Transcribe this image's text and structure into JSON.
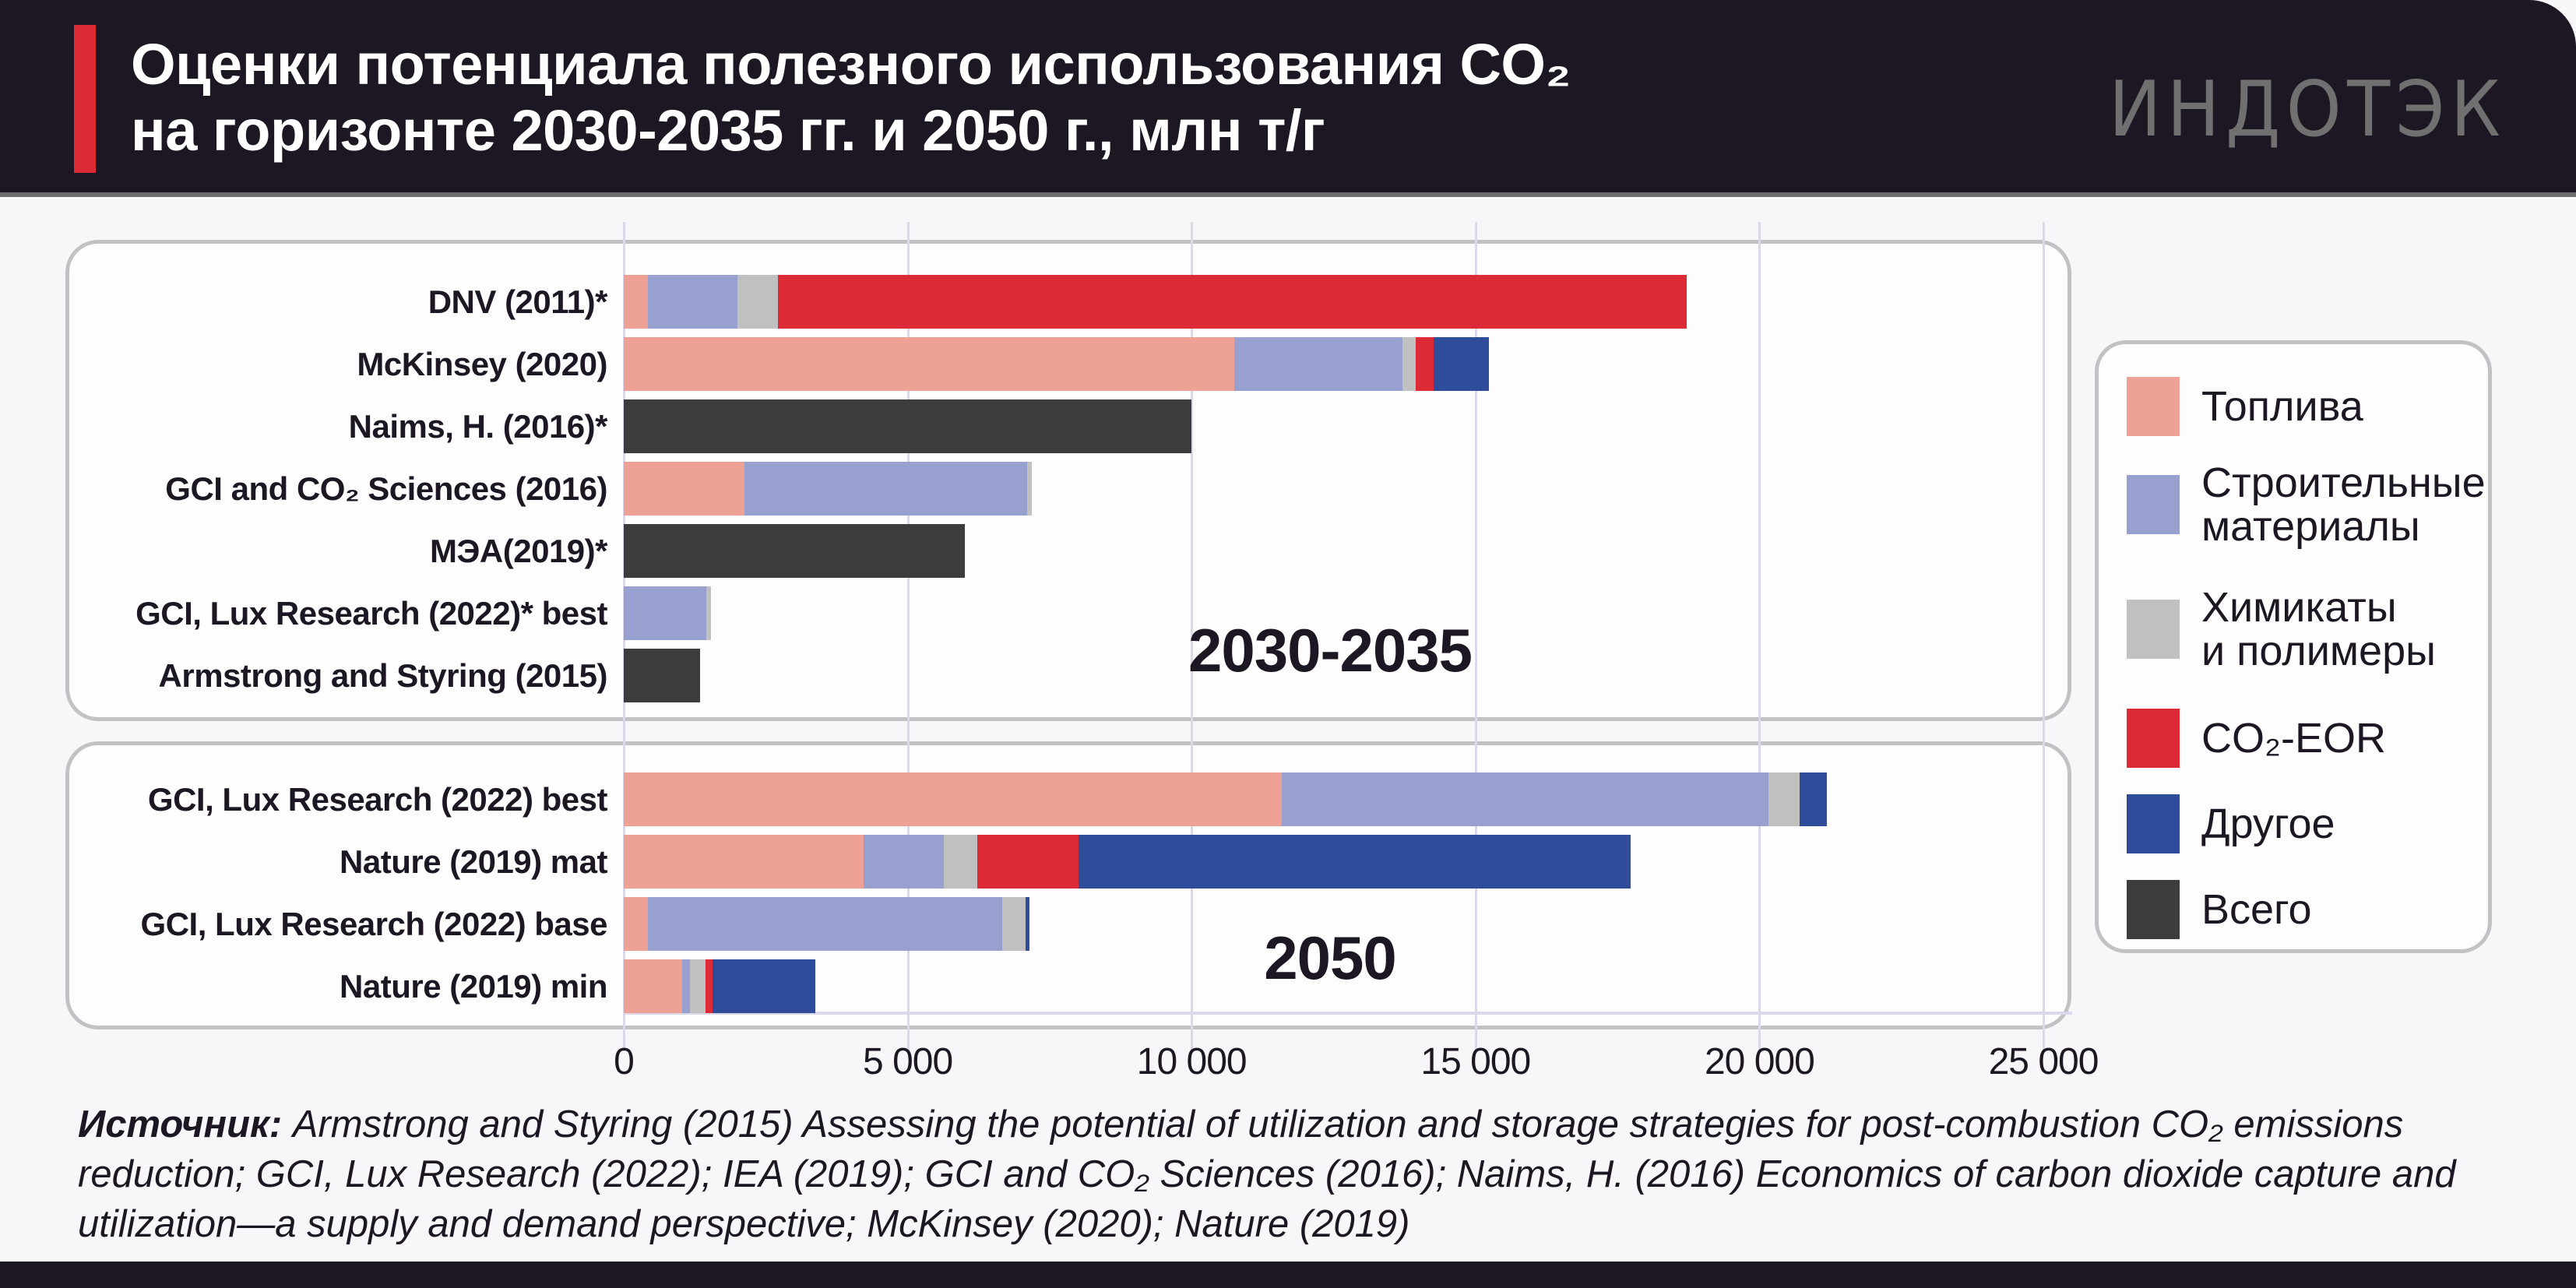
{
  "header": {
    "title_line1": "Оценки потенциала полезного использования CO₂",
    "title_line2": "на горизонте 2030-2035 гг. и 2050 г., млн т/г",
    "logo": "ИНДОТЭК"
  },
  "chart_data": {
    "type": "bar",
    "orientation": "horizontal-stacked",
    "title": "Оценки потенциала полезного использования CO₂ на горизонте 2030-2035 гг. и 2050 г., млн т/г",
    "xlim": [
      0,
      25000
    ],
    "xticks": [
      0,
      5000,
      10000,
      15000,
      20000,
      25000
    ],
    "xtick_labels": [
      "0",
      "5 000",
      "10 000",
      "15 000",
      "20 000",
      "25 000"
    ],
    "grid": true,
    "legend_position": "right",
    "series": [
      {
        "key": "fuel",
        "name": "Топлива",
        "color": "#eea295"
      },
      {
        "key": "build",
        "name": "Строительные материалы",
        "name_line1": "Строительные",
        "name_line2": "материалы",
        "color": "#98a0cf"
      },
      {
        "key": "chem",
        "name": "Химикаты и полимеры",
        "name_line1": "Химикаты",
        "name_line2": "и полимеры",
        "color": "#c0c0c0"
      },
      {
        "key": "eor",
        "name": "CO₂-EOR",
        "color": "#dc2b37"
      },
      {
        "key": "other",
        "name": "Другое",
        "color": "#2e4c9a"
      },
      {
        "key": "total",
        "name": "Всего",
        "color": "#3c3c3c"
      }
    ],
    "groups": [
      {
        "period": "2030-2035",
        "rows": [
          {
            "label": "DNV (2011)*",
            "fuel": 420,
            "build": 1580,
            "chem": 720,
            "eor": 16000,
            "other": 0,
            "total": 0
          },
          {
            "label": "McKinsey (2020)",
            "fuel": 10750,
            "build": 2960,
            "chem": 235,
            "eor": 315,
            "other": 970,
            "total": 0
          },
          {
            "label": "Naims, H. (2016)*",
            "fuel": 0,
            "build": 0,
            "chem": 0,
            "eor": 0,
            "other": 0,
            "total": 10000
          },
          {
            "label": "GCI and CO₂ Sciences (2016)",
            "fuel": 2120,
            "build": 4990,
            "chem": 80,
            "eor": 0,
            "other": 0,
            "total": 0
          },
          {
            "label": "МЭА(2019)*",
            "fuel": 0,
            "build": 0,
            "chem": 0,
            "eor": 0,
            "other": 0,
            "total": 6000
          },
          {
            "label": "GCI, Lux Research (2022)* best",
            "fuel": 0,
            "build": 1450,
            "chem": 80,
            "eor": 0,
            "other": 0,
            "total": 0
          },
          {
            "label": "Armstrong and Styring (2015)",
            "fuel": 0,
            "build": 0,
            "chem": 0,
            "eor": 0,
            "other": 0,
            "total": 1350
          }
        ]
      },
      {
        "period": "2050",
        "rows": [
          {
            "label": "GCI, Lux Research (2022) best",
            "fuel": 11590,
            "build": 8570,
            "chem": 550,
            "eor": 0,
            "other": 480,
            "total": 0
          },
          {
            "label": "Nature (2019) mat",
            "fuel": 4230,
            "build": 1410,
            "chem": 580,
            "eor": 1790,
            "other": 9720,
            "total": 0
          },
          {
            "label": "GCI, Lux Research (2022) base",
            "fuel": 430,
            "build": 6240,
            "chem": 400,
            "eor": 0,
            "other": 80,
            "total": 0
          },
          {
            "label": "Nature (2019) min",
            "fuel": 1030,
            "build": 130,
            "chem": 280,
            "eor": 120,
            "other": 1810,
            "total": 0
          }
        ]
      }
    ]
  },
  "source": {
    "label": "Источник:",
    "text": " Armstrong and Styring (2015) Assessing the potential of utilization and storage strategies for post-combustion CO₂ emissions reduction; GCI, Lux Research (2022); IEA (2019); GCI and CO₂ Sciences (2016); Naims, H. (2016) Economics of carbon dioxide capture and utilization—a supply and demand perspective; McKinsey (2020); Nature (2019)"
  }
}
